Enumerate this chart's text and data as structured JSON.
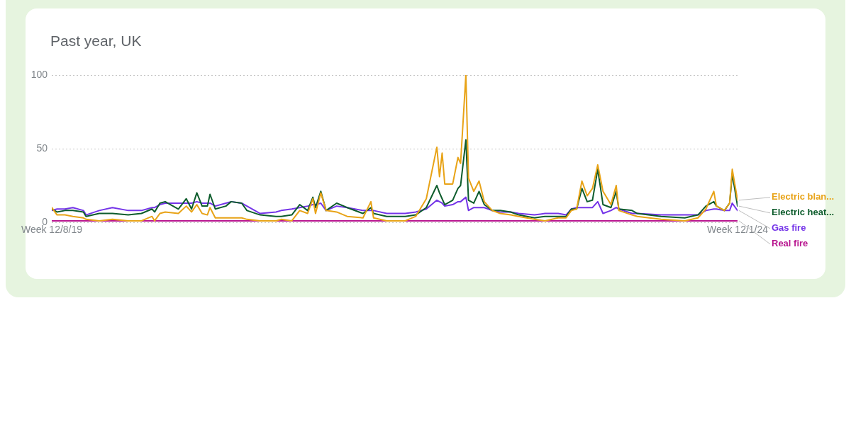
{
  "chart_data": {
    "type": "line",
    "title": "Past year, UK",
    "x": [
      "2019-12-08",
      "2019-12-22",
      "2020-01-12",
      "2020-02-02",
      "2020-03-01",
      "2020-03-08",
      "2020-04-12",
      "2020-05-17",
      "2020-06-28",
      "2020-08-02",
      "2020-08-30",
      "2020-09-06",
      "2020-09-20",
      "2020-10-04",
      "2020-11-08",
      "2020-11-29",
      "2020-12-13",
      "2020-12-27",
      "2021-01-10",
      "2021-01-24",
      "2021-01-31",
      "2021-02-14",
      "2021-03-14",
      "2021-03-28",
      "2021-04-25",
      "2021-05-09",
      "2021-06-13",
      "2021-07-25",
      "2021-08-08",
      "2021-09-05",
      "2021-09-26",
      "2021-10-17",
      "2021-10-31",
      "2021-11-07",
      "2021-11-21",
      "2021-12-05",
      "2022-01-02",
      "2022-01-30",
      "2022-03-13",
      "2022-04-03",
      "2022-04-10",
      "2022-05-15",
      "2022-07-03",
      "2022-07-31",
      "2022-08-28",
      "2022-09-25",
      "2022-10-02",
      "2022-10-09",
      "2022-10-16",
      "2022-11-06",
      "2022-11-20",
      "2022-11-27",
      "2022-12-11",
      "2022-12-18",
      "2023-01-01",
      "2023-01-15",
      "2023-01-29",
      "2023-02-19",
      "2023-03-12",
      "2023-04-09",
      "2023-04-30",
      "2023-06-11",
      "2023-07-09",
      "2023-08-13",
      "2023-09-03",
      "2023-09-17",
      "2023-10-01",
      "2023-10-15",
      "2023-10-29",
      "2023-11-12",
      "2023-11-26",
      "2023-12-10",
      "2023-12-31",
      "2024-01-14",
      "2024-01-21",
      "2024-02-25",
      "2024-03-10",
      "2024-05-12",
      "2024-07-14",
      "2024-08-18",
      "2024-09-08",
      "2024-09-29",
      "2024-10-06",
      "2024-10-27",
      "2024-11-10",
      "2024-11-17",
      "2024-12-01"
    ],
    "series": [
      {
        "name": "Electric blan...",
        "color": "#e8a317",
        "values": [
          10,
          5,
          5,
          4,
          3,
          2,
          1,
          2,
          1,
          1,
          4,
          1,
          6,
          7,
          6,
          11,
          7,
          12,
          6,
          5,
          10,
          3,
          3,
          3,
          3,
          2,
          1,
          1,
          2,
          1,
          8,
          6,
          16,
          6,
          20,
          8,
          7,
          4,
          3,
          14,
          3,
          1,
          1,
          4,
          16,
          51,
          31,
          47,
          26,
          26,
          44,
          40,
          100,
          30,
          21,
          28,
          14,
          8,
          6,
          5,
          4,
          2,
          1,
          3,
          3,
          8,
          9,
          28,
          18,
          23,
          39,
          21,
          12,
          25,
          8,
          5,
          4,
          2,
          1,
          3,
          9,
          21,
          11,
          8,
          13,
          36,
          15
        ]
      },
      {
        "name": "Electric heat...",
        "color": "#0d5c2c",
        "values": [
          9,
          7,
          8,
          8,
          7,
          4,
          6,
          6,
          5,
          6,
          9,
          7,
          13,
          14,
          9,
          16,
          9,
          20,
          11,
          11,
          19,
          9,
          11,
          14,
          13,
          8,
          5,
          4,
          4,
          5,
          12,
          8,
          17,
          10,
          21,
          8,
          13,
          10,
          6,
          10,
          6,
          4,
          4,
          5,
          10,
          25,
          20,
          16,
          12,
          15,
          23,
          25,
          56,
          15,
          13,
          21,
          12,
          8,
          8,
          7,
          5,
          3,
          4,
          4,
          4,
          9,
          9,
          23,
          14,
          15,
          36,
          12,
          10,
          21,
          9,
          8,
          6,
          4,
          3,
          5,
          11,
          14,
          11,
          8,
          13,
          33,
          11
        ]
      },
      {
        "name": "Gas fire",
        "color": "#7434e8",
        "values": [
          8,
          9,
          9,
          10,
          8,
          5,
          8,
          10,
          8,
          8,
          10,
          10,
          12,
          13,
          13,
          13,
          13,
          14,
          13,
          13,
          13,
          11,
          13,
          14,
          13,
          11,
          6,
          7,
          8,
          9,
          10,
          11,
          12,
          12,
          13,
          8,
          11,
          10,
          8,
          8,
          8,
          6,
          6,
          7,
          9,
          15,
          14,
          13,
          11,
          12,
          14,
          14,
          17,
          8,
          10,
          10,
          10,
          8,
          7,
          7,
          6,
          5,
          6,
          6,
          5,
          9,
          10,
          10,
          10,
          10,
          14,
          6,
          8,
          10,
          9,
          6,
          6,
          5,
          5,
          5,
          8,
          9,
          9,
          8,
          8,
          13,
          8
        ]
      },
      {
        "name": "Real fire",
        "color": "#b8168f",
        "values": [
          1,
          1,
          1,
          1,
          1,
          1,
          1,
          1,
          1,
          1,
          1,
          1,
          1,
          1,
          1,
          1,
          1,
          1,
          1,
          1,
          1,
          1,
          1,
          1,
          1,
          1,
          1,
          1,
          1,
          1,
          1,
          1,
          1,
          1,
          1,
          1,
          1,
          1,
          1,
          1,
          1,
          1,
          1,
          1,
          1,
          1,
          1,
          1,
          1,
          1,
          1,
          1,
          1,
          1,
          1,
          1,
          1,
          1,
          1,
          1,
          1,
          1,
          1,
          1,
          1,
          1,
          1,
          1,
          1,
          1,
          1,
          1,
          1,
          1,
          1,
          1,
          1,
          1,
          1,
          1,
          1,
          1,
          1,
          1,
          1,
          1,
          1
        ]
      }
    ],
    "xlim": [
      "2019-12-08",
      "2024-12-01"
    ],
    "xticks": [
      {
        "value": "2019-12-08",
        "label": "Week 12/8/19"
      },
      {
        "value": "2024-12-01",
        "label": "Week 12/1/24"
      }
    ],
    "ylim": [
      0,
      100
    ],
    "yticks": [
      0,
      50,
      100
    ],
    "grid": "y",
    "legend": "right",
    "marker": "none",
    "line_style": "solid"
  }
}
